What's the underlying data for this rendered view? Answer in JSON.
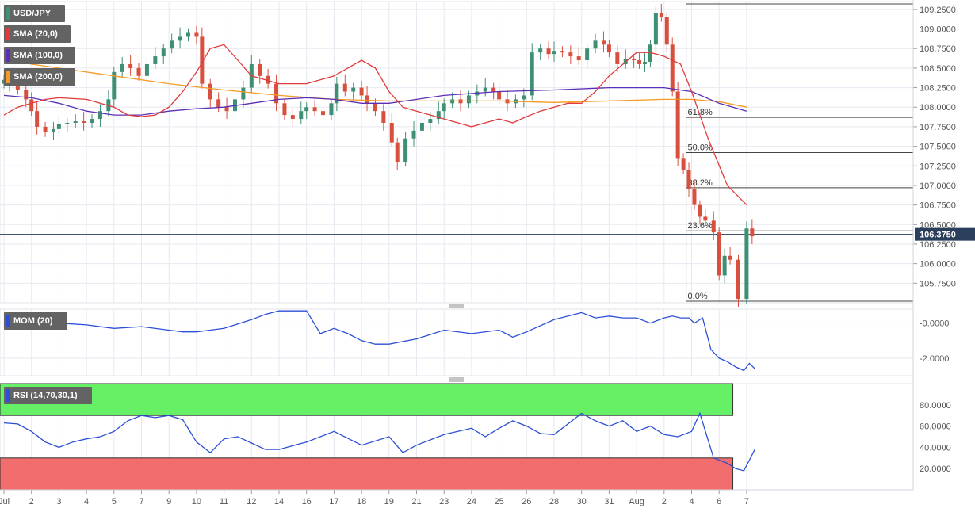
{
  "chart_data": [
    {
      "type": "candlestick",
      "panel": "price",
      "symbol": "USD/JPY",
      "indicators": [
        {
          "name": "SMA (20,0)",
          "color": "#e23a3a"
        },
        {
          "name": "SMA (100,0)",
          "color": "#5b2fb5"
        },
        {
          "name": "SMA (200,0)",
          "color": "#f59a23"
        }
      ],
      "ylim": [
        105.5,
        109.35
      ],
      "y_ticks": [
        "109.2500",
        "109.0000",
        "108.7500",
        "108.5000",
        "108.2500",
        "108.0000",
        "107.7500",
        "107.5000",
        "107.2500",
        "107.0000",
        "106.7500",
        "106.5000",
        "106.2500",
        "106.0000",
        "105.7500"
      ],
      "current_price": "106.3750",
      "fibonacci": {
        "high": 109.32,
        "low": 105.52,
        "levels": [
          {
            "label": "61.8%",
            "value": 107.87
          },
          {
            "label": "50.0%",
            "value": 107.42
          },
          {
            "label": "38.2%",
            "value": 106.97
          },
          {
            "label": "23.6%",
            "value": 106.42
          },
          {
            "label": "0.0%",
            "value": 105.52
          }
        ]
      },
      "close_series": [
        108.35,
        108.3,
        108.22,
        108.1,
        107.95,
        107.75,
        107.68,
        107.72,
        107.78,
        107.8,
        107.82,
        107.8,
        107.85,
        107.95,
        108.1,
        108.45,
        108.55,
        108.5,
        108.4,
        108.55,
        108.65,
        108.75,
        108.85,
        108.9,
        108.95,
        108.9,
        108.3,
        108.1,
        108.0,
        107.95,
        108.1,
        108.25,
        108.55,
        108.4,
        108.3,
        108.05,
        107.9,
        107.85,
        107.95,
        108.0,
        107.95,
        107.9,
        108.05,
        108.3,
        108.2,
        108.25,
        108.15,
        108.05,
        107.95,
        107.8,
        107.55,
        107.3,
        107.6,
        107.7,
        107.8,
        107.85,
        107.95,
        108.05,
        108.1,
        108.05,
        108.15,
        108.2,
        108.25,
        108.2,
        108.1,
        108.05,
        108.1,
        108.15,
        108.7,
        108.75,
        108.68,
        108.72,
        108.7,
        108.65,
        108.6,
        108.75,
        108.85,
        108.8,
        108.7,
        108.55,
        108.62,
        108.6,
        108.55,
        108.58,
        108.8,
        109.2,
        109.15,
        108.8,
        108.2,
        107.35,
        107.2,
        106.95,
        106.75,
        106.6,
        106.55,
        106.4,
        105.85,
        106.1,
        106.05,
        105.55,
        106.45,
        106.35
      ],
      "close_days": [
        0.0,
        0.2,
        0.5,
        0.8,
        1.0,
        1.2,
        1.5,
        1.8,
        2.0,
        2.3,
        2.6,
        2.9,
        3.2,
        3.5,
        3.8,
        4.0,
        4.3,
        4.6,
        4.9,
        5.2,
        5.5,
        5.8,
        6.1,
        6.4,
        6.7,
        7.0,
        7.2,
        7.5,
        7.8,
        8.1,
        8.4,
        8.7,
        9.0,
        9.3,
        9.6,
        9.9,
        10.2,
        10.5,
        10.8,
        11.0,
        11.3,
        11.6,
        11.9,
        12.1,
        12.4,
        12.7,
        13.0,
        13.2,
        13.5,
        13.8,
        14.1,
        14.3,
        14.6,
        14.9,
        15.2,
        15.5,
        15.8,
        16.0,
        16.3,
        16.6,
        16.9,
        17.2,
        17.5,
        17.8,
        18.0,
        18.3,
        18.6,
        18.9,
        19.2,
        19.5,
        19.8,
        20.0,
        20.3,
        20.6,
        20.9,
        21.2,
        21.5,
        21.8,
        22.0,
        22.3,
        22.6,
        22.9,
        23.1,
        23.3,
        23.5,
        23.7,
        23.9,
        24.1,
        24.3,
        24.5,
        24.7,
        24.9,
        25.1,
        25.3,
        25.5,
        25.8,
        26.0,
        26.2,
        26.4,
        26.7,
        27.0,
        27.2
      ],
      "sma20": [
        107.9,
        108.0,
        108.05,
        108.1,
        108.12,
        108.1,
        108.0,
        107.9,
        107.88,
        107.9,
        108.0,
        108.2,
        108.45,
        108.75,
        108.8,
        108.6,
        108.4,
        108.3,
        108.3,
        108.4,
        108.6,
        108.5,
        108.2,
        108.0,
        107.95,
        107.9,
        107.85,
        107.8,
        107.75,
        107.8,
        107.85,
        107.8,
        107.88,
        107.95,
        108.0,
        108.05,
        108.05,
        108.2,
        108.4,
        108.55,
        108.7,
        108.7,
        108.65,
        108.6,
        108.55,
        108.2,
        107.6,
        107.0,
        106.75
      ],
      "sma20_days": [
        0.0,
        0.5,
        1.0,
        1.5,
        2.0,
        3.0,
        4.0,
        4.5,
        5.0,
        5.5,
        6.0,
        6.5,
        7.0,
        7.5,
        8.0,
        8.5,
        9.0,
        10.0,
        11.0,
        12.0,
        13.0,
        13.5,
        14.0,
        14.5,
        15.0,
        15.5,
        16.0,
        16.5,
        17.0,
        17.5,
        18.0,
        18.5,
        19.0,
        19.5,
        20.0,
        20.5,
        21.0,
        21.5,
        22.0,
        22.5,
        23.0,
        23.5,
        24.0,
        24.3,
        24.6,
        25.0,
        25.6,
        26.3,
        27.0
      ],
      "sma100": [
        108.15,
        108.12,
        108.05,
        107.95,
        107.9,
        107.9,
        107.95,
        107.98,
        108.0,
        108.05,
        108.1,
        108.12,
        108.1,
        108.05,
        108.05,
        108.15,
        108.2,
        108.22,
        108.25,
        108.25,
        108.2,
        108.05,
        107.95
      ],
      "sma100_days": [
        0.0,
        1.0,
        2.0,
        3.0,
        4.0,
        5.0,
        6.0,
        7.0,
        8.0,
        9.0,
        10.0,
        11.0,
        12.0,
        13.0,
        14.0,
        16.0,
        18.0,
        20.0,
        22.0,
        24.0,
        25.0,
        26.0,
        27.0
      ],
      "sma200": [
        108.6,
        108.5,
        108.4,
        108.3,
        108.22,
        108.15,
        108.1,
        108.08,
        108.08,
        108.08,
        108.06,
        108.08,
        108.1,
        108.1,
        108.07,
        108.0
      ],
      "sma200_days": [
        0.0,
        2.0,
        4.0,
        6.0,
        8.0,
        10.0,
        12.0,
        14.0,
        16.0,
        18.0,
        20.0,
        22.0,
        24.0,
        25.0,
        26.0,
        27.0
      ]
    },
    {
      "type": "line",
      "panel": "momentum",
      "name": "MOM (20)",
      "color": "#2c4fd6",
      "ylim": [
        -3.0,
        0.8
      ],
      "y_ticks": [
        "-0.0000",
        "-2.0000"
      ],
      "values": [
        0.1,
        0.0,
        0.0,
        -0.1,
        -0.3,
        -0.2,
        -0.4,
        -0.5,
        -0.5,
        -0.4,
        -0.3,
        0.2,
        0.5,
        0.7,
        0.7,
        0.7,
        -0.6,
        -0.3,
        -0.6,
        -1.0,
        -1.2,
        -1.2,
        -0.9,
        -0.4,
        -0.6,
        -0.4,
        -0.8,
        -0.5,
        0.2,
        0.6,
        0.3,
        0.4,
        0.3,
        0.3,
        0.0,
        0.3,
        0.4,
        0.3,
        0.3,
        0.0,
        0.3,
        -1.5,
        -2.0,
        -2.2,
        -2.5,
        -2.7,
        -2.3,
        -2.6
      ],
      "days": [
        0.0,
        1.0,
        2.0,
        3.0,
        4.0,
        5.0,
        6.0,
        6.5,
        7.0,
        7.5,
        8.0,
        9.0,
        9.5,
        10.0,
        10.5,
        11.0,
        11.5,
        12.0,
        12.5,
        13.0,
        13.5,
        14.0,
        15.0,
        16.0,
        17.0,
        18.0,
        18.5,
        19.0,
        20.0,
        21.0,
        21.5,
        22.0,
        22.5,
        23.0,
        23.5,
        24.0,
        24.3,
        24.6,
        24.9,
        25.1,
        25.4,
        25.7,
        26.0,
        26.3,
        26.6,
        26.9,
        27.1,
        27.3
      ]
    },
    {
      "type": "line",
      "panel": "rsi",
      "name": "RSI (14,70,30,1)",
      "color": "#2c4fd6",
      "ylim": [
        0,
        100
      ],
      "y_ticks": [
        "80.0000",
        "60.0000",
        "40.0000",
        "20.0000"
      ],
      "overbought": 70,
      "oversold": 30,
      "values": [
        63,
        62,
        55,
        45,
        40,
        45,
        48,
        50,
        55,
        65,
        70,
        68,
        70,
        66,
        45,
        35,
        48,
        50,
        44,
        38,
        38,
        45,
        55,
        42,
        50,
        35,
        42,
        52,
        58,
        50,
        58,
        65,
        60,
        53,
        52,
        72,
        65,
        60,
        65,
        55,
        60,
        52,
        50,
        55,
        72,
        30,
        25,
        20,
        18,
        28,
        38
      ],
      "days": [
        0.0,
        0.5,
        1.0,
        1.5,
        2.0,
        2.5,
        3.0,
        3.5,
        4.0,
        4.5,
        5.0,
        5.5,
        6.0,
        6.5,
        7.0,
        7.5,
        8.0,
        8.5,
        9.0,
        9.5,
        10.0,
        11.0,
        12.0,
        13.0,
        14.0,
        14.5,
        15.0,
        16.0,
        17.0,
        17.5,
        18.0,
        18.5,
        19.0,
        19.5,
        20.0,
        21.0,
        21.5,
        22.0,
        22.5,
        23.0,
        23.5,
        24.0,
        24.5,
        25.0,
        25.3,
        25.8,
        26.3,
        26.6,
        26.9,
        27.1,
        27.3
      ]
    }
  ],
  "x_axis": {
    "labels": [
      "Jul",
      "2",
      "3",
      "4",
      "5",
      "7",
      "9",
      "10",
      "11",
      "12",
      "14",
      "16",
      "17",
      "18",
      "19",
      "21",
      "23",
      "24",
      "25",
      "26",
      "28",
      "30",
      "31",
      "Aug",
      "2",
      "4",
      "6",
      "7"
    ]
  },
  "legend": {
    "symbol": "USD/JPY",
    "sma20": "SMA (20,0)",
    "sma100": "SMA (100,0)",
    "sma200": "SMA (200,0)",
    "mom": "MOM (20)",
    "rsi": "RSI (14,70,30,1)"
  },
  "colors": {
    "bull": "#3f8f74",
    "bear": "#d94f3e",
    "sma20": "#e23a3a",
    "sma100": "#5b2fb5",
    "sma200": "#f59a23",
    "indicator_line": "#2c4fd6",
    "rsi_overbought_fill": "#66f066",
    "rsi_oversold_fill": "#f26d6d",
    "current_price_tag": "#2a3f5c",
    "grid": "#e6e9f0",
    "axis_text": "#555555"
  }
}
